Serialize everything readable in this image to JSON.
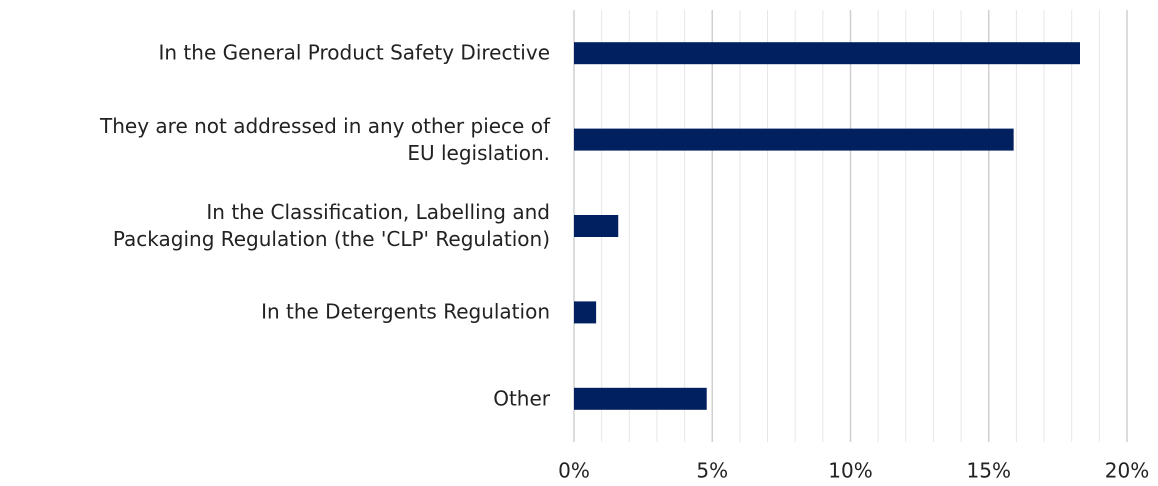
{
  "chart_data": {
    "type": "barh",
    "categories": [
      "In the General Product Safety Directive",
      "They are not addressed in any other piece of\nEU legislation.",
      "In the Classification, Labelling and\nPackaging Regulation (the 'CLP' Regulation)",
      "In the Detergents Regulation",
      "Other"
    ],
    "values": [
      18.3,
      15.9,
      1.6,
      0.8,
      4.8
    ],
    "color": "#002060",
    "xlim": [
      0,
      20
    ],
    "xticks": [
      {
        "value": 0,
        "label": "0%"
      },
      {
        "value": 5,
        "label": "5%"
      },
      {
        "value": 10,
        "label": "10%"
      },
      {
        "value": 15,
        "label": "15%"
      },
      {
        "value": 20,
        "label": "20%"
      }
    ],
    "xminorticks": [
      1,
      2,
      3,
      4,
      6,
      7,
      8,
      9,
      11,
      12,
      13,
      14,
      16,
      17,
      18,
      19
    ],
    "grid": true
  }
}
